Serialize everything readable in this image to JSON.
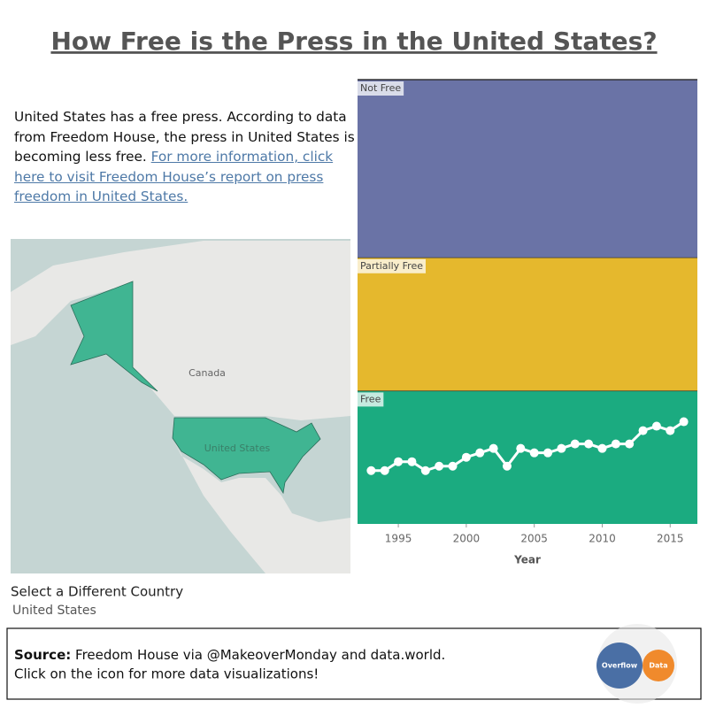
{
  "title": "How Free is the Press in the United States?",
  "description": {
    "text": "United States has a free press. According to data from Freedom House, the press in United States is becoming less free.",
    "link": "For more information, click here to visit Freedom House’s report on press freedom in United States."
  },
  "map": {
    "labels": [
      "Canada",
      "United States"
    ]
  },
  "selector": {
    "label": "Select a Different Country",
    "value": "United States"
  },
  "source": {
    "label": "Source:",
    "text": "Freedom House via @MakeoverMonday and data.world.",
    "note": "Click on the icon for more data visualizations!",
    "logo": [
      "Overflow",
      "Data"
    ]
  },
  "chart_data": {
    "type": "line",
    "x_label": "Year",
    "x": [
      1993,
      1994,
      1995,
      1996,
      1997,
      1998,
      1999,
      2000,
      2001,
      2002,
      2003,
      2004,
      2005,
      2006,
      2007,
      2008,
      2009,
      2010,
      2011,
      2012,
      2013,
      2014,
      2015,
      2016
    ],
    "series": [
      {
        "color": "#ffffff",
        "values": [
          12,
          12,
          14,
          14,
          12,
          13,
          13,
          15,
          16,
          17,
          13,
          17,
          16,
          16,
          17,
          18,
          18,
          17,
          18,
          18,
          21,
          22,
          21,
          23
        ]
      }
    ],
    "xlim": [
      1992,
      2017
    ],
    "xticks": [
      1995,
      2000,
      2005,
      2010,
      2015
    ],
    "ylim": [
      0,
      100
    ],
    "bands": [
      {
        "name": "Free",
        "range": [
          0,
          30
        ],
        "color": "#1bab80"
      },
      {
        "name": "Partially Free",
        "range": [
          30,
          60
        ],
        "color": "#e5b82d"
      },
      {
        "name": "Not Free",
        "range": [
          60,
          100
        ],
        "color": "#6a73a6"
      }
    ]
  }
}
